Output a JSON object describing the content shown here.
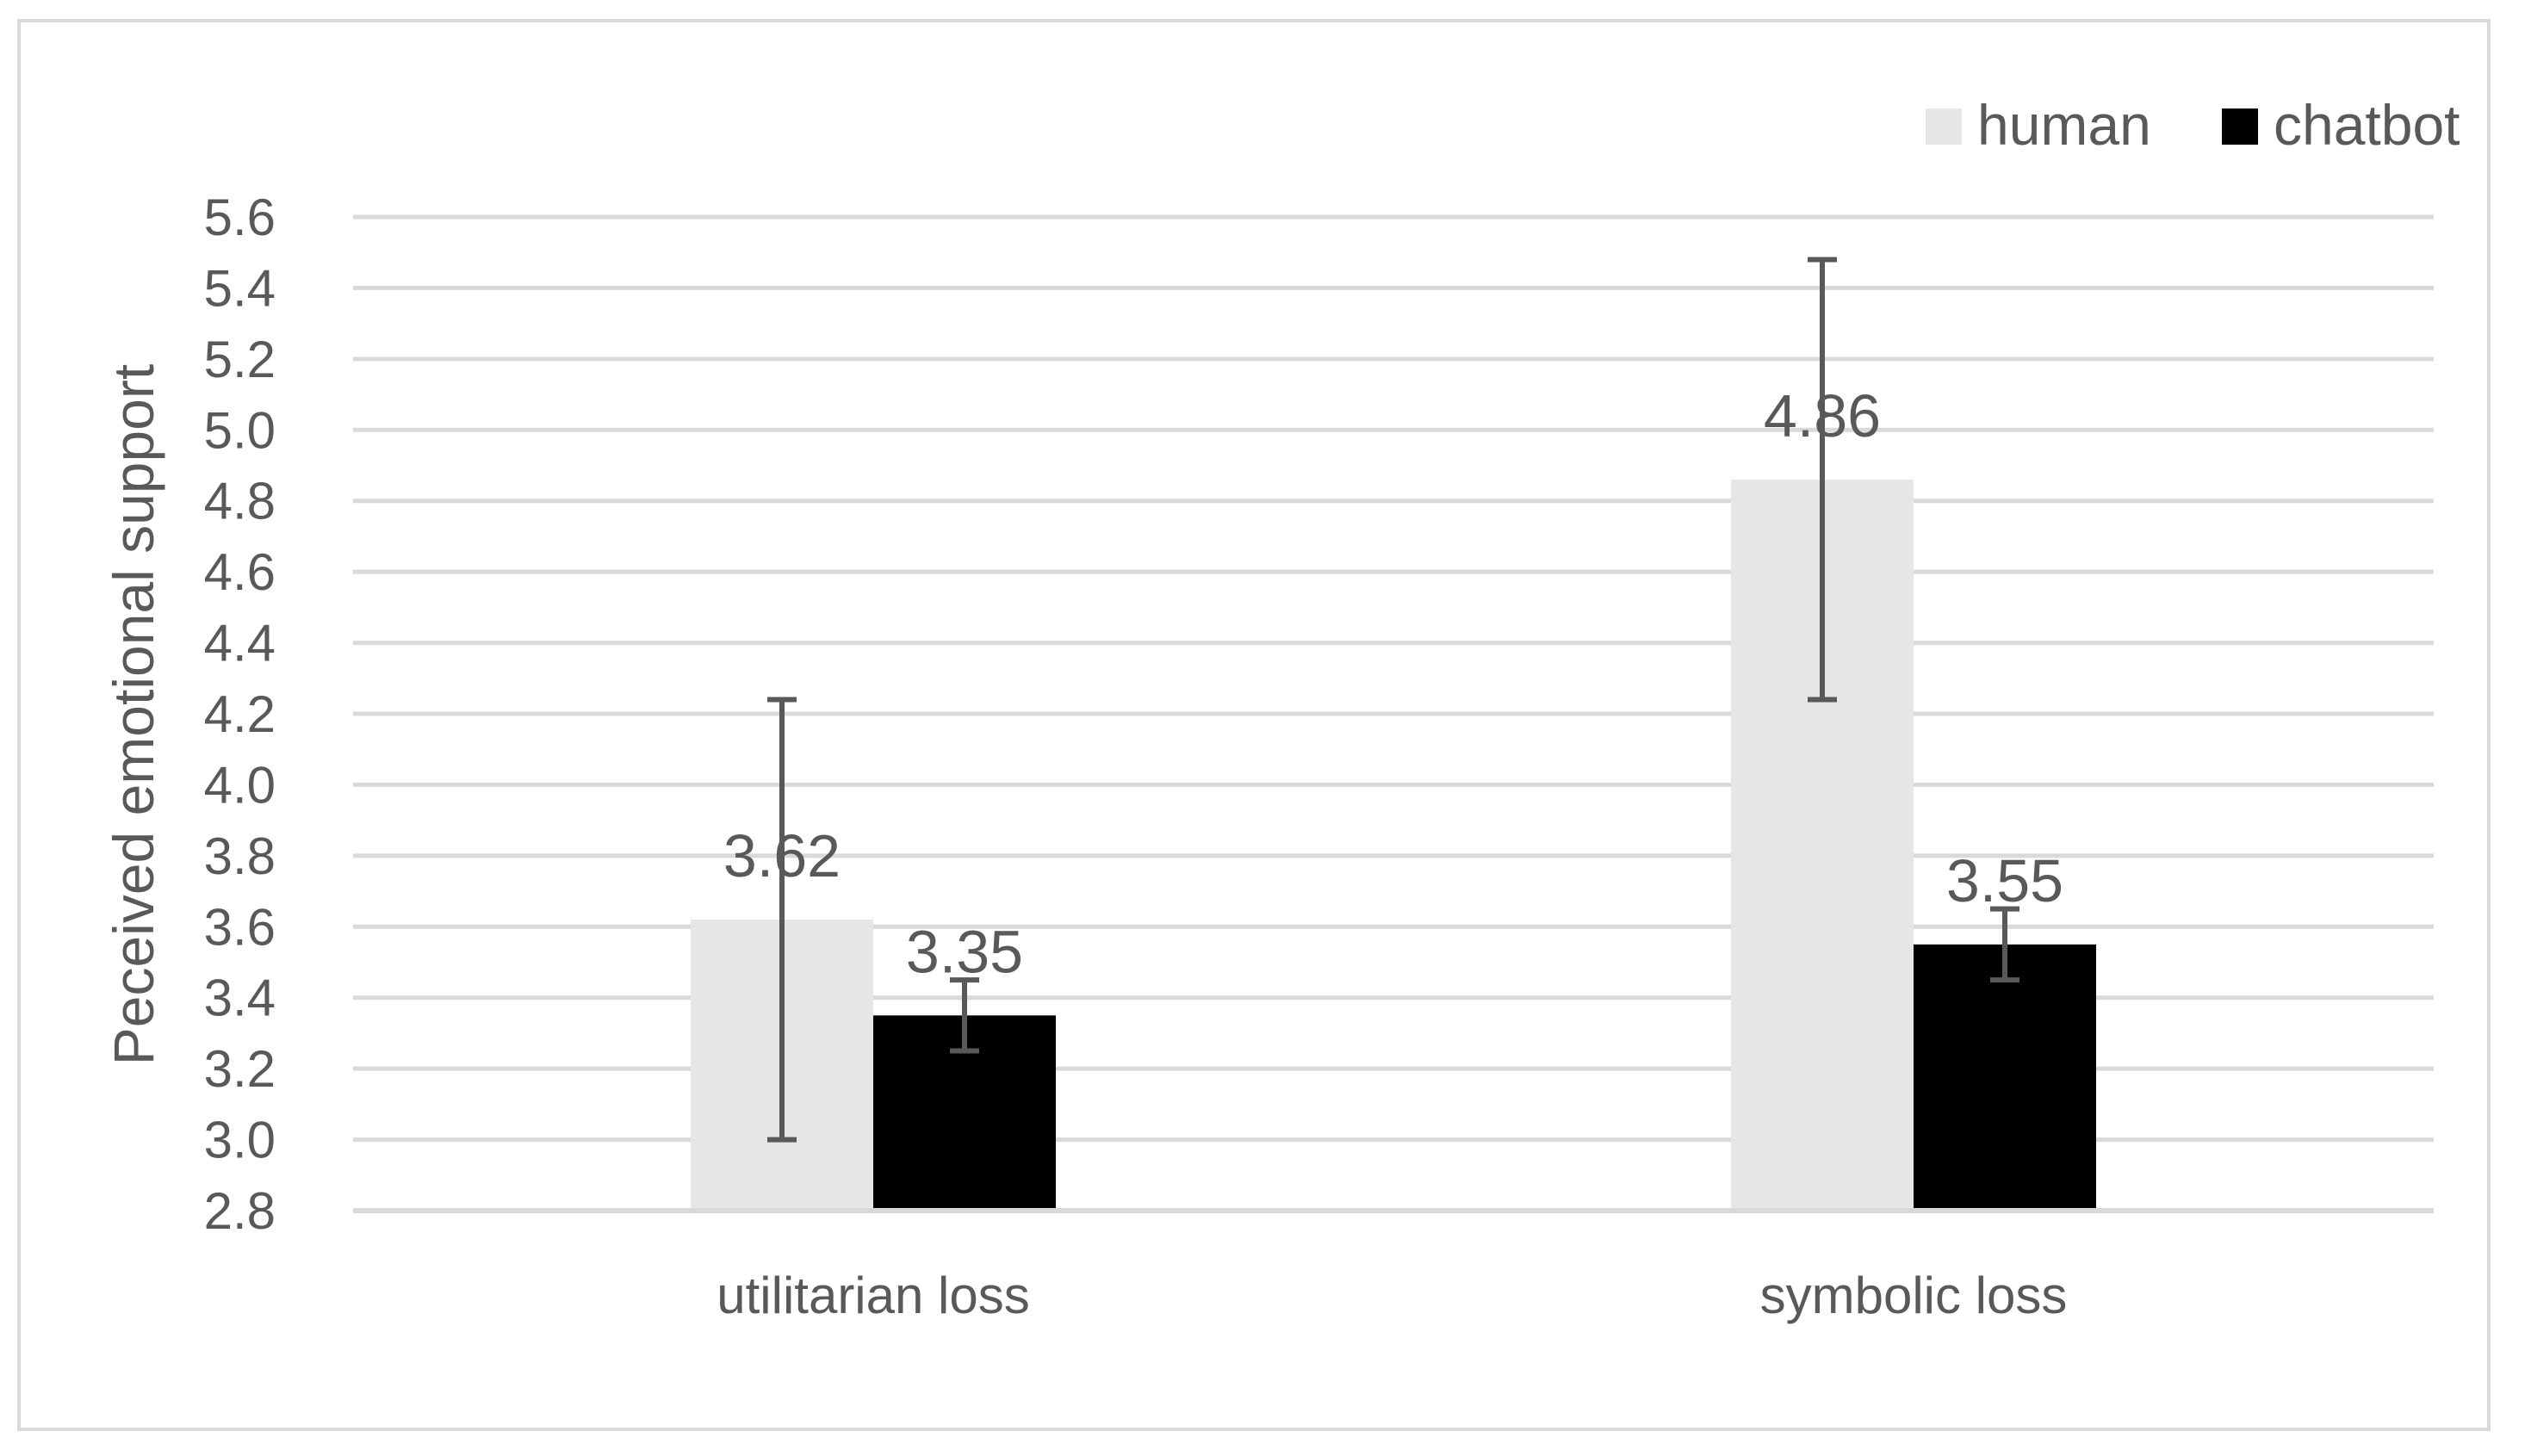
{
  "chart_data": {
    "type": "bar",
    "title": "",
    "xlabel": "",
    "ylabel": "Peceived emotional support",
    "ylim": [
      2.8,
      5.6
    ],
    "yticks": [
      "2.8",
      "3.0",
      "3.2",
      "3.4",
      "3.6",
      "3.8",
      "4.0",
      "4.2",
      "4.4",
      "4.6",
      "4.8",
      "5.0",
      "5.2",
      "5.4",
      "5.6"
    ],
    "categories": [
      "utilitarian loss",
      "symbolic loss"
    ],
    "grid": true,
    "legend_position": "top-right",
    "series": [
      {
        "name": "human",
        "color": "#e6e6e6",
        "values": [
          3.62,
          4.86
        ],
        "labels": [
          "3.62",
          "4.86"
        ],
        "error_low": [
          3.0,
          4.24
        ],
        "error_high": [
          4.24,
          5.48
        ]
      },
      {
        "name": "chatbot",
        "color": "#000000",
        "values": [
          3.35,
          3.55
        ],
        "labels": [
          "3.35",
          "3.55"
        ],
        "error_low": [
          3.25,
          3.45
        ],
        "error_high": [
          3.45,
          3.65
        ]
      }
    ]
  }
}
